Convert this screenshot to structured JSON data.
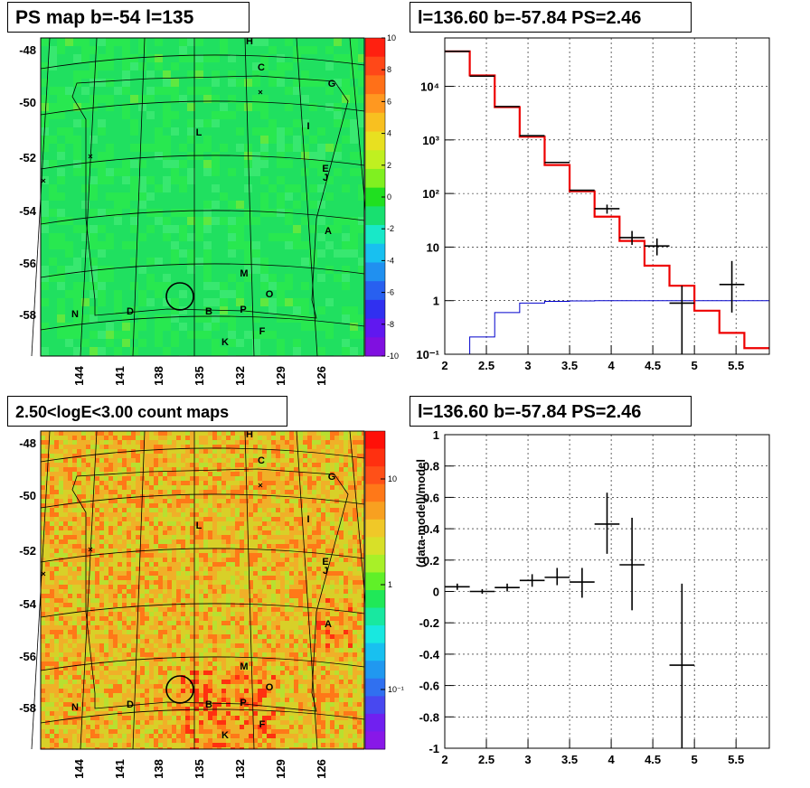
{
  "panels": {
    "tl_title": "PS map b=-54 l=135",
    "tr_title": "l=136.60 b=-57.84 PS=2.46",
    "bl_title": "2.50<logE<3.00 count maps",
    "br_title": "l=136.60 b=-57.84 PS=2.46"
  },
  "chart_data": [
    {
      "type": "heatmap",
      "title": "PS map b=-54 l=135",
      "yticks": [
        "-48",
        "-50",
        "-52",
        "-54",
        "-56",
        "-58"
      ],
      "xticks": [
        "144",
        "141",
        "138",
        "135",
        "132",
        "129",
        "126"
      ],
      "colorbar": {
        "min": -10,
        "max": 10,
        "ticks": [
          "10",
          "8",
          "6",
          "4",
          "2",
          "0",
          "-2",
          "-4",
          "-6",
          "-8",
          "-10"
        ]
      },
      "background_color": "#22e055",
      "source_labels": [
        "H",
        "C",
        "G",
        "L",
        "I",
        "E",
        "J",
        "A",
        "M",
        "O",
        "N",
        "D",
        "B",
        "P",
        "F",
        "K"
      ]
    },
    {
      "type": "line",
      "title": "l=136.60 b=-57.84 PS=2.46",
      "xlim": [
        2,
        5.9
      ],
      "ylim": [
        0.1,
        80000
      ],
      "yscale": "log",
      "xticks": [
        "2",
        "2.5",
        "3",
        "3.5",
        "4",
        "4.5",
        "5",
        "5.5"
      ],
      "yticks": [
        "10⁻¹",
        "1",
        "10",
        "10²",
        "10³",
        "10⁴"
      ],
      "data": [
        {
          "x": 2.15,
          "y": 45000,
          "xerr": 0.15
        },
        {
          "x": 2.45,
          "y": 15500,
          "xerr": 0.15
        },
        {
          "x": 2.75,
          "y": 4200,
          "xerr": 0.15
        },
        {
          "x": 3.05,
          "y": 1200,
          "xerr": 0.15
        },
        {
          "x": 3.35,
          "y": 380,
          "xerr": 0.15
        },
        {
          "x": 3.65,
          "y": 115,
          "xerr": 0.15
        },
        {
          "x": 3.95,
          "y": 52,
          "xerr": 0.15,
          "ylo": 42,
          "yhi": 62
        },
        {
          "x": 4.25,
          "y": 15,
          "xerr": 0.15,
          "ylo": 11,
          "yhi": 20
        },
        {
          "x": 4.55,
          "y": 10.5,
          "xerr": 0.15,
          "ylo": 7,
          "yhi": 14.5
        },
        {
          "x": 4.85,
          "y": 0.9,
          "xerr": 0.15,
          "ylo": 0.1,
          "yhi": 1.9
        },
        {
          "x": 5.45,
          "y": 2,
          "xerr": 0.15,
          "ylo": 0.6,
          "yhi": 5.5
        }
      ],
      "model_red": {
        "edges": [
          2,
          2.3,
          2.6,
          2.9,
          3.2,
          3.5,
          3.8,
          4.1,
          4.4,
          4.7,
          5.0,
          5.3,
          5.6,
          5.9
        ],
        "values": [
          45000,
          16000,
          4100,
          1150,
          340,
          110,
          37,
          13,
          4.5,
          1.9,
          0.65,
          0.25,
          0.13
        ]
      },
      "model_blue": {
        "edges": [
          2.3,
          2.6,
          2.9,
          3.2,
          3.5,
          3.8,
          4.1,
          4.4,
          4.7,
          5.0,
          5.3,
          5.6,
          5.9
        ],
        "values": [
          0.21,
          0.6,
          0.9,
          0.97,
          0.99,
          1,
          1,
          1,
          1,
          1,
          1,
          1
        ]
      }
    },
    {
      "type": "heatmap",
      "title": "2.50<logE<3.00 count maps",
      "yticks": [
        "-48",
        "-50",
        "-52",
        "-54",
        "-56",
        "-58"
      ],
      "xticks": [
        "144",
        "141",
        "138",
        "135",
        "132",
        "129",
        "126"
      ],
      "colorbar": {
        "scale": "log",
        "ticks": [
          "10",
          "1",
          "10⁻¹"
        ]
      },
      "source_labels": [
        "H",
        "C",
        "G",
        "L",
        "I",
        "E",
        "J",
        "A",
        "M",
        "O",
        "N",
        "D",
        "B",
        "P",
        "F",
        "K"
      ]
    },
    {
      "type": "scatter",
      "title": "l=136.60 b=-57.84 PS=2.46",
      "ylabel": "(data-model)/model",
      "xlim": [
        2,
        5.9
      ],
      "ylim": [
        -1,
        1
      ],
      "xticks": [
        "2",
        "2.5",
        "3",
        "3.5",
        "4",
        "4.5",
        "5",
        "5.5"
      ],
      "yticks": [
        "1",
        "0.8",
        "0.6",
        "0.4",
        "0.2",
        "0",
        "-0.2",
        "-0.4",
        "-0.6",
        "-0.8",
        "-1"
      ],
      "data": [
        {
          "x": 2.15,
          "y": 0.03,
          "ylo": 0.01,
          "yhi": 0.05
        },
        {
          "x": 2.45,
          "y": 0.0,
          "ylo": -0.015,
          "yhi": 0.015
        },
        {
          "x": 2.75,
          "y": 0.025,
          "ylo": 0.0,
          "yhi": 0.05
        },
        {
          "x": 3.05,
          "y": 0.07,
          "ylo": 0.03,
          "yhi": 0.11
        },
        {
          "x": 3.35,
          "y": 0.09,
          "ylo": 0.04,
          "yhi": 0.15
        },
        {
          "x": 3.65,
          "y": 0.06,
          "ylo": -0.04,
          "yhi": 0.15
        },
        {
          "x": 3.95,
          "y": 0.43,
          "ylo": 0.24,
          "yhi": 0.63
        },
        {
          "x": 4.25,
          "y": 0.17,
          "ylo": -0.12,
          "yhi": 0.47
        },
        {
          "x": 4.85,
          "y": -0.47,
          "ylo": -1.0,
          "yhi": 0.05
        }
      ]
    }
  ]
}
